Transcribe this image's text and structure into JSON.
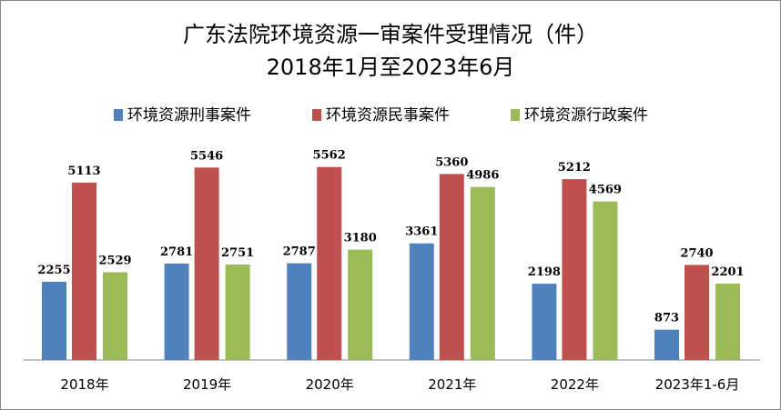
{
  "chart_data": {
    "type": "bar",
    "title": "广东法院环境资源一审案件受理情况（件）",
    "subtitle": "2018年1月至2023年6月",
    "categories": [
      "2018年",
      "2019年",
      "2020年",
      "2021年",
      "2022年",
      "2023年1-6月"
    ],
    "series": [
      {
        "name": "环境资源刑事案件",
        "color": "#4F81BD",
        "values": [
          2255,
          2781,
          2787,
          3361,
          2198,
          873
        ]
      },
      {
        "name": "环境资源民事案件",
        "color": "#C0504D",
        "values": [
          5113,
          5546,
          5562,
          5360,
          5212,
          2740
        ]
      },
      {
        "name": "环境资源行政案件",
        "color": "#9BBB59",
        "values": [
          2529,
          2751,
          3180,
          4986,
          4569,
          2201
        ]
      }
    ],
    "ylim": [
      0,
      6000
    ],
    "legend": "top",
    "grid": false,
    "data_labels": true
  }
}
